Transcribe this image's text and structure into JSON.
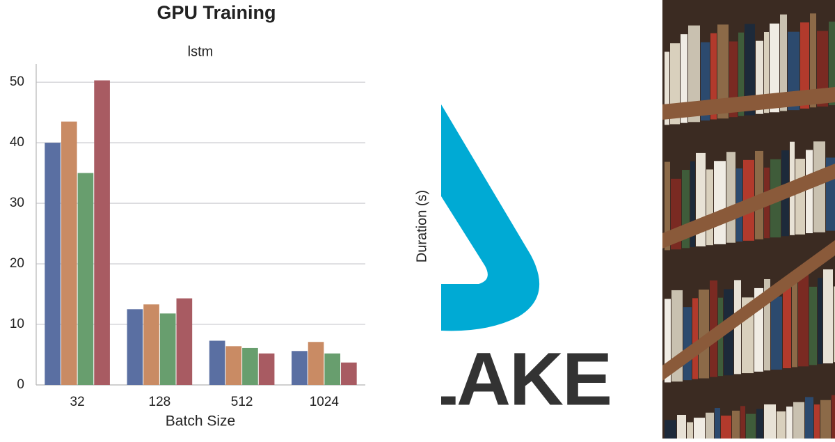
{
  "chart_data": {
    "type": "bar",
    "title": "GPU Training",
    "subtitle": "lstm",
    "xlabel": "Batch Size",
    "categories": [
      "32",
      "128",
      "512",
      "1024"
    ],
    "series": [
      {
        "color": "#5a6fa2",
        "values": [
          40,
          12.5,
          7.3,
          5.6
        ]
      },
      {
        "color": "#c98b64",
        "values": [
          43.5,
          13.3,
          6.4,
          7.1
        ]
      },
      {
        "color": "#689e6e",
        "values": [
          35,
          11.8,
          6.1,
          5.2
        ]
      },
      {
        "color": "#a85b62",
        "values": [
          50.3,
          14.3,
          5.2,
          3.7
        ]
      }
    ],
    "ylim": [
      0,
      53
    ],
    "yticks": [
      0,
      10,
      20,
      30,
      40,
      50
    ],
    "grid": true
  },
  "second_panel": {
    "ylabel": "Duration (s)"
  },
  "logo": {
    "text": "LAKE"
  }
}
